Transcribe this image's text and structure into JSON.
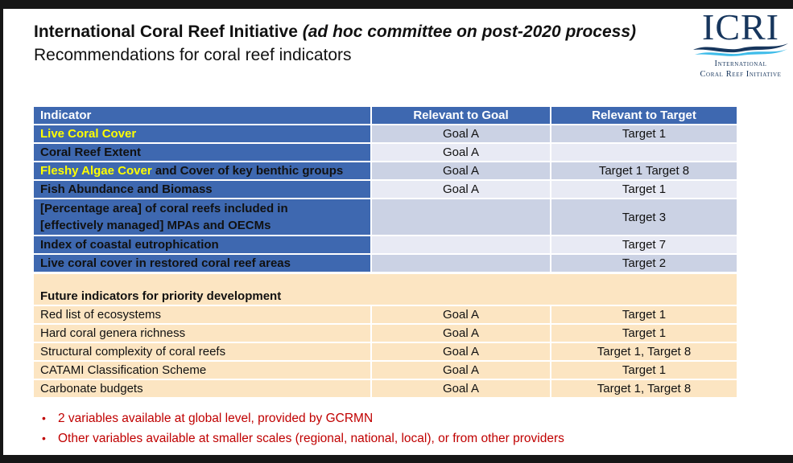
{
  "slide": {
    "title_bold": "International Coral Reef Initiative",
    "title_italic": " (ad hoc committee on post-2020 process)",
    "subtitle": "Recommendations for coral reef indicators"
  },
  "logo": {
    "acronym": "ICRI",
    "name_line1": "International",
    "name_line2": "Coral Reef Initiative"
  },
  "table": {
    "headers": [
      "Indicator",
      "Relevant to Goal",
      "Relevant to Target"
    ],
    "rows": [
      {
        "indicator": [
          {
            "text": "Live Coral Cover",
            "highlight": true
          }
        ],
        "goal": "Goal A",
        "target": "Target 1",
        "tall": false
      },
      {
        "indicator": [
          {
            "text": "Coral Reef Extent",
            "highlight": false
          }
        ],
        "goal": "Goal A",
        "target": "",
        "tall": false
      },
      {
        "indicator": [
          {
            "text": "Fleshy Algae Cover",
            "highlight": true
          },
          {
            "text": " and Cover of key benthic groups",
            "highlight": false
          }
        ],
        "goal": "Goal A",
        "target": "Target 1 Target 8",
        "tall": false
      },
      {
        "indicator": [
          {
            "text": "Fish Abundance and Biomass",
            "highlight": false
          }
        ],
        "goal": "Goal A",
        "target": "Target 1",
        "tall": false
      },
      {
        "indicator": [
          {
            "text": "[Percentage area] of coral reefs included in\n[effectively managed] MPAs and OECMs",
            "highlight": false
          }
        ],
        "goal": "",
        "target": "Target 3",
        "tall": true
      },
      {
        "indicator": [
          {
            "text": "Index of coastal eutrophication",
            "highlight": false
          }
        ],
        "goal": "",
        "target": "Target 7",
        "tall": false
      },
      {
        "indicator": [
          {
            "text": "Live coral cover in restored coral reef areas",
            "highlight": false
          }
        ],
        "goal": "",
        "target": "Target 2",
        "tall": false
      }
    ]
  },
  "future": {
    "header": "Future indicators for priority development",
    "rows": [
      {
        "indicator": "Red list of ecosystems",
        "goal": "Goal A",
        "target": "Target 1"
      },
      {
        "indicator": "Hard coral genera richness",
        "goal": "Goal A",
        "target": "Target 1"
      },
      {
        "indicator": "Structural complexity of coral reefs",
        "goal": "Goal A",
        "target": "Target 1, Target 8"
      },
      {
        "indicator": "CATAMI Classification Scheme",
        "goal": "Goal A",
        "target": "Target 1"
      },
      {
        "indicator": "Carbonate budgets",
        "goal": "Goal A",
        "target": "Target 1, Target 8"
      }
    ]
  },
  "bullets": [
    "2 variables available at global level, provided by GCRMN",
    "Other variables available at smaller scales (regional, national, local), or from other providers"
  ],
  "colors": {
    "accent_blue": "#3E68B0",
    "band_dark": "#CBD2E4",
    "band_light": "#E8EAF4",
    "highlight_yellow": "#FFFF00",
    "cream": "#FCE5C2",
    "bullet_red": "#C00000",
    "logo_navy": "#17365D",
    "logo_cyan": "#3FBCE9"
  }
}
